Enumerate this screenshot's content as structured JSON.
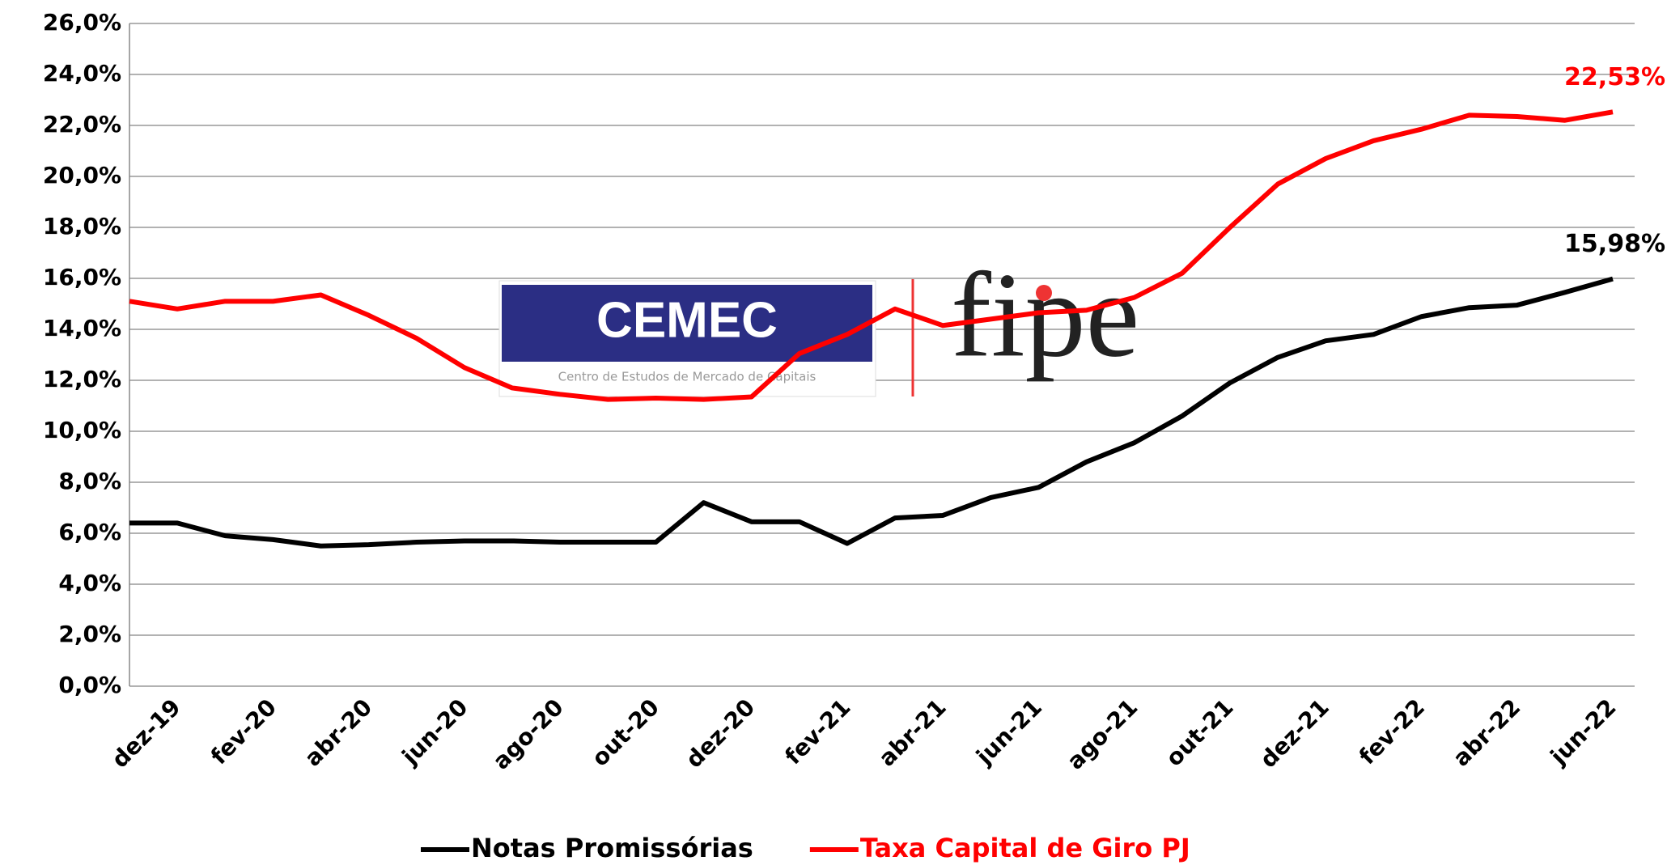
{
  "chart_data": {
    "type": "line",
    "logo": {
      "name": "CEMEC",
      "subtitle": "Centro de Estudos de Mercado de Capitais",
      "partner": "fipe"
    },
    "categories": [
      null,
      "dez-19",
      null,
      "fev-20",
      null,
      "abr-20",
      null,
      "jun-20",
      null,
      "ago-20",
      null,
      "out-20",
      null,
      "dez-20",
      null,
      "fev-21",
      null,
      "abr-21",
      null,
      "jun-21",
      null,
      "ago-21",
      null,
      "out-21",
      null,
      "dez-21",
      null,
      "fev-22",
      null,
      "abr-22",
      null,
      "jun-22"
    ],
    "series": [
      {
        "name": "Notas Promissórias",
        "color": "#000000",
        "values": [
          6.4,
          6.4,
          5.9,
          5.75,
          5.5,
          5.55,
          5.65,
          5.7,
          5.7,
          5.65,
          5.65,
          5.65,
          7.2,
          6.45,
          6.45,
          5.6,
          6.6,
          6.7,
          7.4,
          7.8,
          8.8,
          9.55,
          10.6,
          11.9,
          12.9,
          13.55,
          13.8,
          14.5,
          14.85,
          14.95,
          15.45,
          15.98
        ],
        "value_labels": [
          null,
          null,
          null,
          null,
          null,
          null,
          null,
          null,
          null,
          null,
          null,
          null,
          null,
          null,
          null,
          null,
          null,
          null,
          null,
          null,
          null,
          null,
          null,
          null,
          null,
          null,
          null,
          null,
          null,
          null,
          null,
          "15,98%"
        ]
      },
      {
        "name": "Taxa Capital de Giro PJ",
        "color": "#ff0000",
        "values": [
          15.1,
          14.8,
          15.1,
          15.1,
          15.35,
          14.55,
          13.65,
          12.5,
          11.7,
          11.45,
          11.25,
          11.3,
          11.25,
          11.35,
          13.05,
          13.8,
          14.8,
          14.15,
          14.4,
          14.65,
          14.75,
          15.25,
          16.2,
          18.0,
          19.7,
          20.7,
          21.4,
          21.85,
          22.4,
          22.35,
          22.2,
          22.53
        ],
        "value_labels": [
          null,
          null,
          null,
          null,
          null,
          null,
          null,
          null,
          null,
          null,
          null,
          null,
          null,
          null,
          null,
          null,
          null,
          null,
          null,
          null,
          null,
          null,
          null,
          null,
          null,
          null,
          null,
          null,
          null,
          null,
          null,
          "22,53%"
        ]
      }
    ],
    "ylim": [
      0,
      26
    ],
    "yticks": [
      {
        "value": 0,
        "label": "0,0%"
      },
      {
        "value": 2,
        "label": "2,0%"
      },
      {
        "value": 4,
        "label": "4,0%"
      },
      {
        "value": 6,
        "label": "6,0%"
      },
      {
        "value": 8,
        "label": "8,0%"
      },
      {
        "value": 10,
        "label": "10,0%"
      },
      {
        "value": 12,
        "label": "12,0%"
      },
      {
        "value": 14,
        "label": "14,0%"
      },
      {
        "value": 16,
        "label": "16,0%"
      },
      {
        "value": 18,
        "label": "18,0%"
      },
      {
        "value": 20,
        "label": "20,0%"
      },
      {
        "value": 22,
        "label": "22,0%"
      },
      {
        "value": 24,
        "label": "24,0%"
      },
      {
        "value": 26,
        "label": "26,0%"
      }
    ],
    "grid": true,
    "legend": "bottom"
  }
}
